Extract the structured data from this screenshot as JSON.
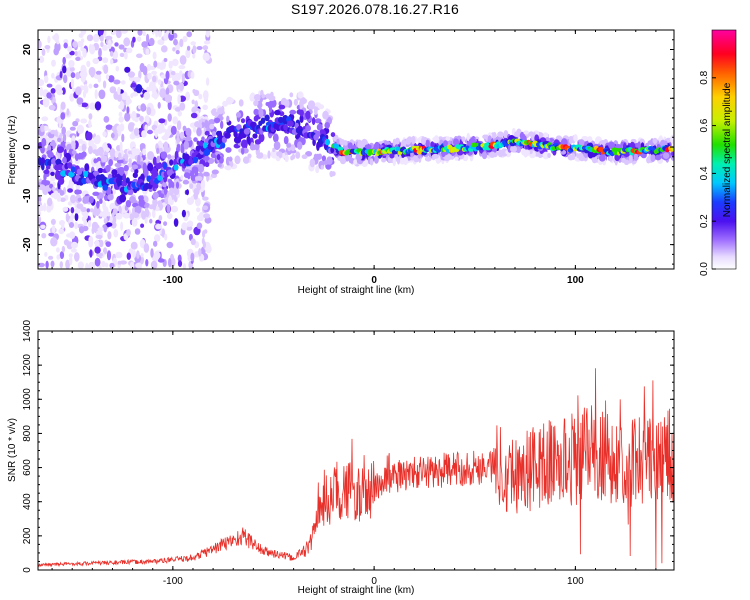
{
  "figure_title": "S197.2026.078.16.27.R16",
  "colors": {
    "snr_line": "#e8302a",
    "background": "#ffffff",
    "axis": "#000000"
  },
  "chart_data": [
    {
      "type": "heatmap",
      "title": "S197.2026.078.16.27.R16",
      "xlabel": "Height of straight line (km)",
      "ylabel": "Frequency (Hz)",
      "xlim": [
        -167,
        149
      ],
      "ylim": [
        -25,
        24
      ],
      "xticks": [
        -100,
        0,
        100
      ],
      "xtick_labels": [
        "-100",
        "0",
        "100"
      ],
      "yticks": [
        -20,
        -10,
        0,
        10,
        20
      ],
      "ytick_labels": [
        "-20",
        "-10",
        "0",
        "10",
        "20"
      ],
      "colorbar": {
        "label": "Normalized spectral amplitude",
        "range": [
          0,
          1
        ],
        "ticks": [
          0.0,
          0.2,
          0.4,
          0.6,
          0.8
        ],
        "tick_labels": [
          "0.0",
          "0.2",
          "0.4",
          "0.6",
          "0.8"
        ],
        "colormap": "rainbow (white-violet-blue-cyan-green-yellow-orange-red-magenta)"
      },
      "ridge": [
        {
          "x": -167,
          "f": -2
        },
        {
          "x": -140,
          "f": -7
        },
        {
          "x": -115,
          "f": -8
        },
        {
          "x": -100,
          "f": -4
        },
        {
          "x": -85,
          "f": -1
        },
        {
          "x": -70,
          "f": 3
        },
        {
          "x": -50,
          "f": 5
        },
        {
          "x": -35,
          "f": 4
        },
        {
          "x": -25,
          "f": 1
        },
        {
          "x": -15,
          "f": -1
        },
        {
          "x": 0,
          "f": -1
        },
        {
          "x": 40,
          "f": -0.3
        },
        {
          "x": 60,
          "f": 0.3
        },
        {
          "x": 70,
          "f": 1.2
        },
        {
          "x": 90,
          "f": 0
        },
        {
          "x": 120,
          "f": -1
        },
        {
          "x": 149,
          "f": -0.5
        }
      ]
    },
    {
      "type": "line",
      "xlabel": "Height of straight line (km)",
      "ylabel": "SNR (10 * v/v)",
      "xlim": [
        -167,
        149
      ],
      "ylim": [
        0,
        1400
      ],
      "xticks": [
        -100,
        0,
        100
      ],
      "xtick_labels": [
        "-100",
        "0",
        "100"
      ],
      "yticks": [
        0,
        200,
        400,
        600,
        800,
        1000,
        1200,
        1400
      ],
      "ytick_labels": [
        "0",
        "200",
        "400",
        "600",
        "800",
        "1000",
        "1200",
        "1400"
      ],
      "series": [
        {
          "name": "SNR",
          "envelope": [
            {
              "x": -167,
              "y": 30
            },
            {
              "x": -140,
              "y": 40
            },
            {
              "x": -110,
              "y": 50
            },
            {
              "x": -90,
              "y": 70
            },
            {
              "x": -75,
              "y": 150
            },
            {
              "x": -65,
              "y": 200
            },
            {
              "x": -55,
              "y": 110
            },
            {
              "x": -40,
              "y": 70
            },
            {
              "x": -32,
              "y": 140
            },
            {
              "x": -25,
              "y": 400
            },
            {
              "x": -15,
              "y": 480
            },
            {
              "x": -5,
              "y": 430
            },
            {
              "x": 5,
              "y": 520
            },
            {
              "x": 15,
              "y": 560
            },
            {
              "x": 30,
              "y": 580
            },
            {
              "x": 50,
              "y": 600
            },
            {
              "x": 62,
              "y": 620
            },
            {
              "x": 70,
              "y": 560
            },
            {
              "x": 85,
              "y": 620
            },
            {
              "x": 95,
              "y": 640
            },
            {
              "x": 108,
              "y": 680
            },
            {
              "x": 120,
              "y": 640
            },
            {
              "x": 135,
              "y": 650
            },
            {
              "x": 149,
              "y": 660
            }
          ]
        }
      ]
    }
  ]
}
